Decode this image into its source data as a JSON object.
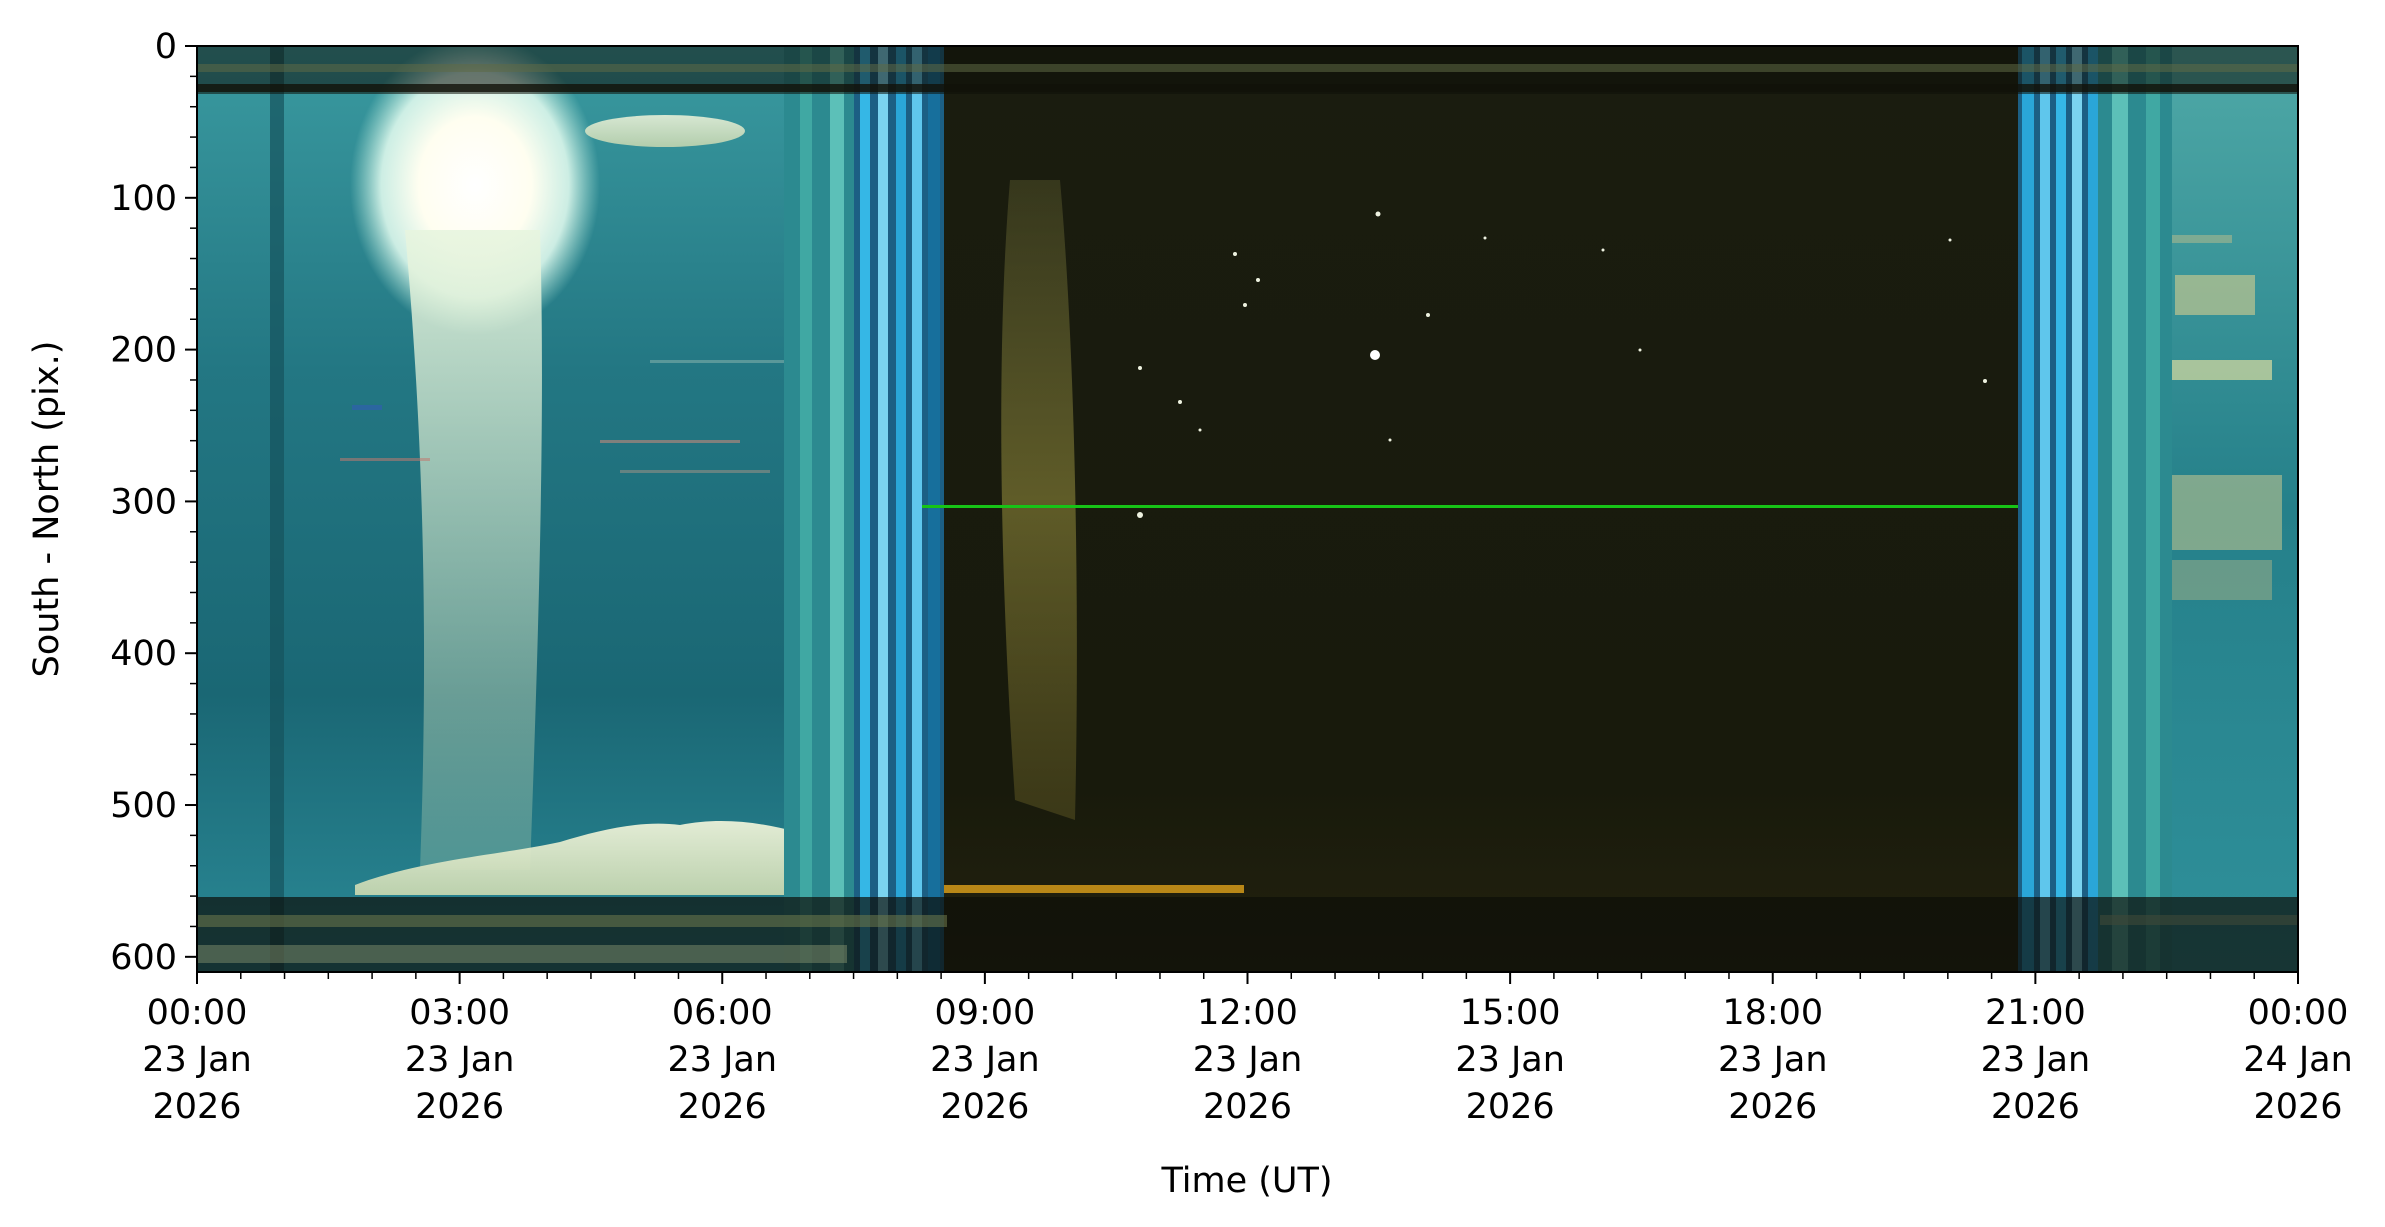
{
  "chart_data": {
    "type": "heatmap",
    "title": "",
    "xlabel": "Time (UT)",
    "ylabel": "South - North (pix.)",
    "x_range": [
      "2026-01-23T00:00",
      "2026-01-24T00:00"
    ],
    "y_range": [
      0,
      610
    ],
    "y_inverted": true,
    "grid": false,
    "x_ticks": [
      {
        "time": "2026-01-23T00:00",
        "lines": [
          "00:00",
          "23 Jan",
          "2026"
        ]
      },
      {
        "time": "2026-01-23T03:00",
        "lines": [
          "03:00",
          "23 Jan",
          "2026"
        ]
      },
      {
        "time": "2026-01-23T06:00",
        "lines": [
          "06:00",
          "23 Jan",
          "2026"
        ]
      },
      {
        "time": "2026-01-23T09:00",
        "lines": [
          "09:00",
          "23 Jan",
          "2026"
        ]
      },
      {
        "time": "2026-01-23T12:00",
        "lines": [
          "12:00",
          "23 Jan",
          "2026"
        ]
      },
      {
        "time": "2026-01-23T15:00",
        "lines": [
          "15:00",
          "23 Jan",
          "2026"
        ]
      },
      {
        "time": "2026-01-23T18:00",
        "lines": [
          "18:00",
          "23 Jan",
          "2026"
        ]
      },
      {
        "time": "2026-01-23T21:00",
        "lines": [
          "21:00",
          "23 Jan",
          "2026"
        ]
      },
      {
        "time": "2026-01-24T00:00",
        "lines": [
          "00:00",
          "24 Jan",
          "2026"
        ]
      }
    ],
    "y_ticks": [
      0,
      100,
      200,
      300,
      400,
      500,
      600
    ],
    "content": "keogram sky-camera composite: daylight 00:00-~07:30 and ~22:00-24:00 UT, twilight bands ~07:30-08:30 and ~20:50-21:45 UT, night sky in between",
    "colors": {
      "day_sky": "#1f6f78",
      "night_sky": "#1a1b0e",
      "twilight": "#2aa6d8",
      "sun_glare": "#fffef0",
      "green_line": "#17c417"
    }
  }
}
